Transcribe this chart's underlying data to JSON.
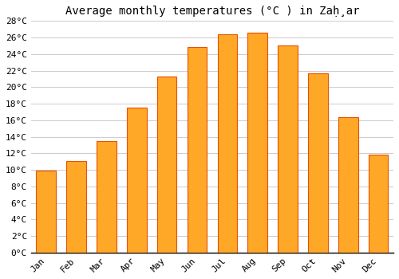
{
  "title": "Average monthly temperatures (°C ) in Zaḩ̣ar",
  "months": [
    "Jan",
    "Feb",
    "Mar",
    "Apr",
    "May",
    "Jun",
    "Jul",
    "Aug",
    "Sep",
    "Oct",
    "Nov",
    "Dec"
  ],
  "values": [
    9.9,
    11.1,
    13.5,
    17.5,
    21.3,
    24.8,
    26.4,
    26.6,
    25.0,
    21.7,
    16.4,
    11.8
  ],
  "bar_color": "#FFA726",
  "bar_edge_color": "#E65100",
  "ylim": [
    0,
    28
  ],
  "ytick_step": 2,
  "background_color": "#FFFFFF",
  "grid_color": "#CCCCCC",
  "title_fontsize": 10,
  "tick_fontsize": 8,
  "font_family": "monospace"
}
